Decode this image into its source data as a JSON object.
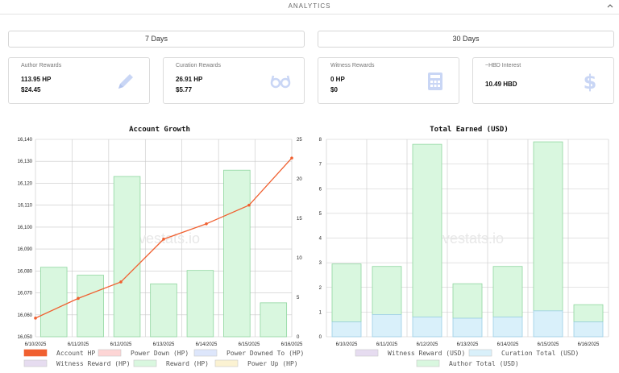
{
  "header": {
    "title": "ANALYTICS"
  },
  "ranges": {
    "left": "7 Days",
    "right": "30 Days"
  },
  "cards": [
    {
      "label": "Author Rewards",
      "v1": "113.95 HP",
      "v2": "$24.45",
      "icon": "pencil-icon"
    },
    {
      "label": "Curation Rewards",
      "v1": "26.91 HP",
      "v2": "$5.77",
      "icon": "glasses-icon"
    },
    {
      "label": "Witness Rewards",
      "v1": "0 HP",
      "v2": "$0",
      "icon": "calculator-icon"
    },
    {
      "label": "~HBD Interest",
      "v1": "10.49 HBD",
      "v2": "",
      "icon": "dollar-icon"
    }
  ],
  "colors": {
    "accent_icon": "#c9d6f5",
    "account_hp": "#f06030",
    "reward_bar_fill": "#d9f7df",
    "reward_bar_stroke": "#8fd69f",
    "curation_fill": "#d9f0fa",
    "curation_stroke": "#9ccfe6",
    "grid": "#c8c8c8"
  },
  "watermark": "hivestats.io",
  "chart_data": [
    {
      "type": "bar+line",
      "title": "Account Growth",
      "categories": [
        "6/10/2025",
        "6/11/2025",
        "6/12/2025",
        "6/13/2025",
        "6/14/2025",
        "6/15/2025",
        "6/16/2025"
      ],
      "y_left": {
        "min": 16050,
        "max": 16140,
        "ticks": [
          "16,050",
          "16,060",
          "16,070",
          "16,080",
          "16,090",
          "16,100",
          "16,110",
          "16,120",
          "16,130",
          "16,140"
        ]
      },
      "y_right": {
        "min": 0,
        "max": 25,
        "ticks": [
          "0",
          "5",
          "10",
          "15",
          "20",
          "25"
        ]
      },
      "series": [
        {
          "name": "Account HP",
          "axis": "left",
          "kind": "line",
          "values": [
            16058.5,
            16067.5,
            16075,
            16094.5,
            16101.5,
            16110,
            16131.5
          ]
        },
        {
          "name": "Reward (HP)",
          "axis": "right",
          "kind": "bar",
          "values": [
            8.8,
            7.8,
            20.3,
            6.7,
            8.4,
            21.1,
            4.3
          ]
        }
      ],
      "legend": [
        "Account HP",
        "Power Down (HP)",
        "Power Downed To (HP)",
        "Witness Reward (HP)",
        "Reward (HP)",
        "Power Up (HP)"
      ],
      "legend_colors": [
        "#f06030",
        "#fdd5d5",
        "#dde6fb",
        "#e6dcf0",
        "#d9f7df",
        "#fbf2d2"
      ]
    },
    {
      "type": "stacked-bar",
      "title": "Total Earned (USD)",
      "categories": [
        "6/10/2025",
        "6/11/2025",
        "6/12/2025",
        "6/13/2025",
        "6/14/2025",
        "6/15/2025",
        "6/16/2025"
      ],
      "y": {
        "min": 0,
        "max": 8,
        "ticks": [
          "0",
          "1",
          "2",
          "3",
          "4",
          "5",
          "6",
          "7",
          "8"
        ]
      },
      "series": [
        {
          "name": "Curation Total (USD)",
          "values": [
            0.6,
            0.9,
            0.8,
            0.75,
            0.8,
            1.05,
            0.6
          ]
        },
        {
          "name": "Author Total (USD)",
          "values": [
            2.35,
            1.95,
            7.0,
            1.4,
            2.05,
            6.85,
            0.7
          ]
        }
      ],
      "legend": [
        "Witness Reward (USD)",
        "Curation Total (USD)",
        "Author Total (USD)"
      ],
      "legend_colors": [
        "#e6dcf0",
        "#d9f0fa",
        "#d9f7df"
      ]
    }
  ]
}
